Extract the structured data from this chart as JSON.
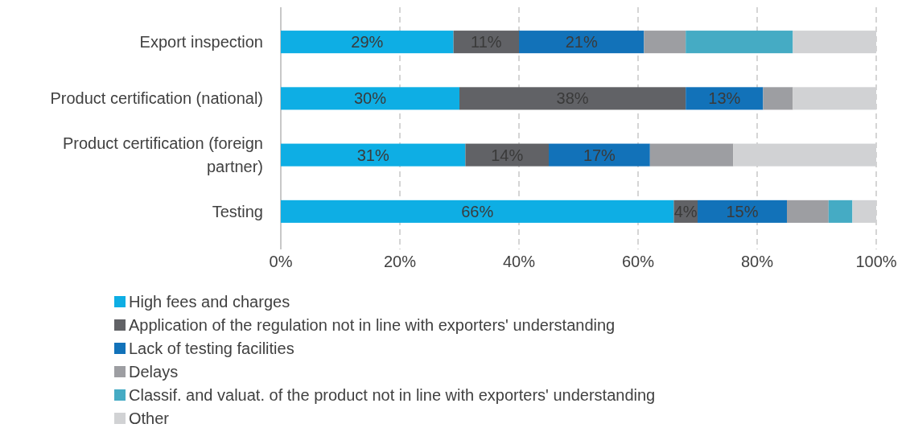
{
  "chart_data": {
    "type": "bar",
    "orientation": "horizontal",
    "stacked": true,
    "categories": [
      "Export inspection",
      "Product certification (national)",
      "Product certification (foreign partner)",
      "Testing"
    ],
    "series": [
      {
        "name": "High fees and charges",
        "color": "#0eaee4",
        "values": [
          29,
          30,
          31,
          66
        ],
        "value_labels": [
          "29%",
          "30%",
          "31%",
          "66%"
        ]
      },
      {
        "name": "Application of the regulation not in line with exporters' understanding",
        "color": "#616266",
        "values": [
          11,
          38,
          14,
          4
        ],
        "value_labels": [
          "11%",
          "38%",
          "14%",
          "4%"
        ]
      },
      {
        "name": "Lack of testing facilities",
        "color": "#1272b9",
        "values": [
          21,
          13,
          17,
          15
        ],
        "value_labels": [
          "21%",
          "13%",
          "17%",
          "15%"
        ]
      },
      {
        "name": "Delays",
        "color": "#9d9ea2",
        "values": [
          7,
          5,
          14,
          7
        ]
      },
      {
        "name": "Classif. and valuat. of the product not in line with exporters' understanding",
        "color": "#45abc4",
        "values": [
          18,
          null,
          null,
          4
        ]
      },
      {
        "name": "Other",
        "color": "#d1d2d4",
        "values": [
          14,
          14,
          24,
          4
        ]
      }
    ],
    "xlim": [
      0,
      100
    ],
    "xticks": [
      {
        "value": 0,
        "label": "0%"
      },
      {
        "value": 20,
        "label": "20%"
      },
      {
        "value": 40,
        "label": "40%"
      },
      {
        "value": 60,
        "label": "60%"
      },
      {
        "value": 80,
        "label": "80%"
      },
      {
        "value": 100,
        "label": "100%"
      }
    ],
    "grid": "x",
    "legend": "bottom"
  }
}
